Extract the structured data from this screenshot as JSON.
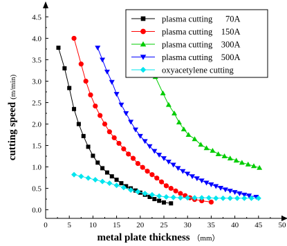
{
  "chart_data": {
    "type": "scatter",
    "xlabel": "metal plate thickness",
    "xlabel_unit": "（mm）",
    "ylabel": "cutting speed",
    "ylabel_unit": "(m/min)",
    "xlim": [
      0,
      50
    ],
    "ylim": [
      -0.2,
      4.7
    ],
    "xticks": [
      0,
      5,
      10,
      15,
      20,
      25,
      30,
      35,
      40,
      45,
      50
    ],
    "yticks": [
      0.0,
      0.5,
      1.0,
      1.5,
      2.0,
      2.5,
      3.0,
      3.5,
      4.0,
      4.5
    ],
    "ytick_labels": [
      "0.0",
      "0.5",
      "1.0",
      "1.5",
      "2.0",
      "2.5",
      "3.0",
      "3.5",
      "4.0",
      "4.5"
    ],
    "grid": false,
    "legend_position": "top-right",
    "series": [
      {
        "name": "plasma cutting      70A",
        "marker": "square",
        "color": "#000000",
        "points": [
          [
            2.7,
            3.78
          ],
          [
            4.0,
            3.3
          ],
          [
            5.0,
            2.84
          ],
          [
            6.0,
            2.35
          ],
          [
            7.0,
            2.0
          ],
          [
            8.0,
            1.72
          ],
          [
            9.0,
            1.47
          ],
          [
            10.0,
            1.26
          ],
          [
            11.0,
            1.1
          ],
          [
            12.0,
            0.97
          ],
          [
            13.0,
            0.87
          ],
          [
            14.0,
            0.78
          ],
          [
            15.0,
            0.7
          ],
          [
            16.0,
            0.62
          ],
          [
            17.0,
            0.55
          ],
          [
            18.0,
            0.5
          ],
          [
            19.0,
            0.45
          ],
          [
            20.0,
            0.4
          ],
          [
            21.0,
            0.35
          ],
          [
            22.0,
            0.3
          ],
          [
            23.0,
            0.25
          ],
          [
            24.0,
            0.21
          ],
          [
            25.0,
            0.17
          ],
          [
            26.5,
            0.15
          ]
        ]
      },
      {
        "name": "plasma cutting    150A",
        "marker": "circle",
        "color": "#ff0000",
        "points": [
          [
            6.0,
            4.0
          ],
          [
            7.5,
            3.4
          ],
          [
            8.5,
            3.0
          ],
          [
            9.5,
            2.68
          ],
          [
            10.5,
            2.42
          ],
          [
            11.5,
            2.2
          ],
          [
            12.5,
            2.0
          ],
          [
            13.5,
            1.82
          ],
          [
            14.5,
            1.68
          ],
          [
            15.5,
            1.55
          ],
          [
            16.5,
            1.42
          ],
          [
            17.5,
            1.3
          ],
          [
            18.5,
            1.2
          ],
          [
            19.5,
            1.08
          ],
          [
            20.5,
            0.99
          ],
          [
            21.5,
            0.9
          ],
          [
            22.5,
            0.82
          ],
          [
            23.5,
            0.74
          ],
          [
            24.5,
            0.65
          ],
          [
            25.5,
            0.56
          ],
          [
            26.5,
            0.5
          ],
          [
            27.5,
            0.44
          ],
          [
            28.5,
            0.38
          ],
          [
            29.5,
            0.33
          ],
          [
            30.5,
            0.28
          ],
          [
            31.5,
            0.24
          ],
          [
            33.0,
            0.21
          ],
          [
            35.0,
            0.18
          ]
        ]
      },
      {
        "name": "plasma cutting    300A",
        "marker": "triangle-up",
        "color": "#00cc00",
        "points": [
          [
            22.0,
            3.62
          ],
          [
            23.2,
            3.1
          ],
          [
            24.8,
            2.72
          ],
          [
            26.0,
            2.45
          ],
          [
            27.2,
            2.25
          ],
          [
            28.2,
            2.04
          ],
          [
            29.2,
            1.88
          ],
          [
            30.2,
            1.75
          ],
          [
            31.5,
            1.65
          ],
          [
            32.8,
            1.52
          ],
          [
            34.0,
            1.44
          ],
          [
            35.3,
            1.38
          ],
          [
            36.5,
            1.3
          ],
          [
            37.8,
            1.25
          ],
          [
            39.0,
            1.2
          ],
          [
            40.3,
            1.15
          ],
          [
            41.5,
            1.1
          ],
          [
            42.8,
            1.06
          ],
          [
            44.0,
            1.02
          ],
          [
            45.2,
            0.98
          ]
        ]
      },
      {
        "name": "plasma cutting    500A",
        "marker": "triangle-down",
        "color": "#0000ff",
        "points": [
          [
            11.0,
            3.78
          ],
          [
            12.0,
            3.5
          ],
          [
            13.0,
            3.22
          ],
          [
            14.0,
            2.98
          ],
          [
            15.0,
            2.7
          ],
          [
            16.0,
            2.45
          ],
          [
            17.0,
            2.25
          ],
          [
            18.0,
            2.05
          ],
          [
            19.0,
            1.87
          ],
          [
            20.0,
            1.72
          ],
          [
            21.0,
            1.6
          ],
          [
            22.0,
            1.48
          ],
          [
            23.0,
            1.37
          ],
          [
            24.0,
            1.28
          ],
          [
            25.0,
            1.2
          ],
          [
            26.0,
            1.12
          ],
          [
            27.0,
            1.05
          ],
          [
            28.0,
            0.97
          ],
          [
            29.0,
            0.9
          ],
          [
            30.0,
            0.84
          ],
          [
            31.0,
            0.78
          ],
          [
            32.0,
            0.73
          ],
          [
            33.0,
            0.68
          ],
          [
            34.0,
            0.63
          ],
          [
            35.0,
            0.59
          ],
          [
            36.0,
            0.55
          ],
          [
            37.0,
            0.51
          ],
          [
            38.0,
            0.47
          ],
          [
            39.0,
            0.44
          ],
          [
            40.0,
            0.41
          ],
          [
            41.0,
            0.38
          ],
          [
            42.0,
            0.35
          ],
          [
            43.0,
            0.33
          ],
          [
            44.5,
            0.3
          ]
        ]
      },
      {
        "name": "oxyacetylene cutting",
        "marker": "diamond",
        "color": "#00e5ee",
        "points": [
          [
            6.0,
            0.82
          ],
          [
            7.5,
            0.78
          ],
          [
            9.0,
            0.74
          ],
          [
            10.5,
            0.7
          ],
          [
            12.0,
            0.66
          ],
          [
            13.5,
            0.62
          ],
          [
            15.0,
            0.57
          ],
          [
            16.5,
            0.52
          ],
          [
            18.0,
            0.46
          ],
          [
            19.5,
            0.42
          ],
          [
            21.0,
            0.38
          ],
          [
            22.5,
            0.35
          ],
          [
            24.0,
            0.32
          ],
          [
            25.5,
            0.3
          ],
          [
            27.0,
            0.29
          ],
          [
            28.5,
            0.28
          ],
          [
            30.0,
            0.28
          ],
          [
            31.5,
            0.28
          ],
          [
            33.0,
            0.28
          ],
          [
            34.5,
            0.28
          ],
          [
            36.0,
            0.27
          ],
          [
            37.5,
            0.27
          ],
          [
            39.0,
            0.27
          ],
          [
            40.5,
            0.27
          ],
          [
            42.0,
            0.27
          ],
          [
            43.5,
            0.27
          ],
          [
            45.0,
            0.27
          ]
        ]
      }
    ]
  }
}
